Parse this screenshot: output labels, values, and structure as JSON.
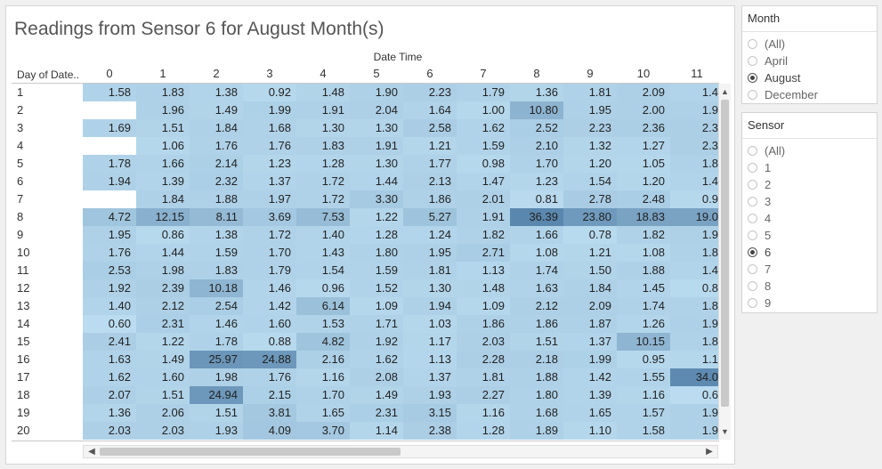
{
  "title": "Readings from Sensor 6 for August Month(s)",
  "column_axis_title": "Date Time",
  "row_axis_title": "Day of Date..",
  "columns": [
    "0",
    "1",
    "2",
    "3",
    "4",
    "5",
    "6",
    "7",
    "8",
    "9",
    "10",
    "11"
  ],
  "rows": [
    {
      "day": "1",
      "values": [
        "1.58",
        "1.83",
        "1.38",
        "0.92",
        "1.48",
        "1.90",
        "2.23",
        "1.79",
        "1.36",
        "1.81",
        "2.09",
        "1.4"
      ]
    },
    {
      "day": "2",
      "values": [
        "",
        "1.96",
        "1.49",
        "1.99",
        "1.91",
        "2.04",
        "1.64",
        "1.00",
        "10.80",
        "1.95",
        "2.00",
        "1.9"
      ]
    },
    {
      "day": "3",
      "values": [
        "1.69",
        "1.51",
        "1.84",
        "1.68",
        "1.30",
        "1.30",
        "2.58",
        "1.62",
        "2.52",
        "2.23",
        "2.36",
        "2.3"
      ]
    },
    {
      "day": "4",
      "values": [
        "",
        "1.06",
        "1.76",
        "1.76",
        "1.83",
        "1.91",
        "1.21",
        "1.59",
        "2.10",
        "1.32",
        "1.27",
        "2.3"
      ]
    },
    {
      "day": "5",
      "values": [
        "1.78",
        "1.66",
        "2.14",
        "1.23",
        "1.28",
        "1.30",
        "1.77",
        "0.98",
        "1.70",
        "1.20",
        "1.05",
        "1.8"
      ]
    },
    {
      "day": "6",
      "values": [
        "1.94",
        "1.39",
        "2.32",
        "1.37",
        "1.72",
        "1.44",
        "2.13",
        "1.47",
        "1.23",
        "1.54",
        "1.20",
        "1.4"
      ]
    },
    {
      "day": "7",
      "values": [
        "",
        "1.84",
        "1.88",
        "1.97",
        "1.72",
        "3.30",
        "1.86",
        "2.01",
        "0.81",
        "2.78",
        "2.48",
        "0.9"
      ]
    },
    {
      "day": "8",
      "values": [
        "4.72",
        "12.15",
        "8.11",
        "3.69",
        "7.53",
        "1.22",
        "5.27",
        "1.91",
        "36.39",
        "23.80",
        "18.83",
        "19.0"
      ]
    },
    {
      "day": "9",
      "values": [
        "1.95",
        "0.86",
        "1.38",
        "1.72",
        "1.40",
        "1.28",
        "1.24",
        "1.82",
        "1.66",
        "0.78",
        "1.82",
        "1.9"
      ]
    },
    {
      "day": "10",
      "values": [
        "1.76",
        "1.44",
        "1.59",
        "1.70",
        "1.43",
        "1.80",
        "1.95",
        "2.71",
        "1.08",
        "1.21",
        "1.08",
        "1.8"
      ]
    },
    {
      "day": "11",
      "values": [
        "2.53",
        "1.98",
        "1.83",
        "1.79",
        "1.54",
        "1.59",
        "1.81",
        "1.13",
        "1.74",
        "1.50",
        "1.88",
        "1.4"
      ]
    },
    {
      "day": "12",
      "values": [
        "1.92",
        "2.39",
        "10.18",
        "1.46",
        "0.96",
        "1.52",
        "1.30",
        "1.48",
        "1.63",
        "1.84",
        "1.45",
        "0.8"
      ]
    },
    {
      "day": "13",
      "values": [
        "1.40",
        "2.12",
        "2.54",
        "1.42",
        "6.14",
        "1.09",
        "1.94",
        "1.09",
        "2.12",
        "2.09",
        "1.74",
        "1.8"
      ]
    },
    {
      "day": "14",
      "values": [
        "0.60",
        "2.31",
        "1.46",
        "1.60",
        "1.53",
        "1.71",
        "1.03",
        "1.86",
        "1.86",
        "1.87",
        "1.26",
        "1.9"
      ]
    },
    {
      "day": "15",
      "values": [
        "2.41",
        "1.22",
        "1.78",
        "0.88",
        "4.82",
        "1.92",
        "1.17",
        "2.03",
        "1.51",
        "1.37",
        "10.15",
        "1.8"
      ]
    },
    {
      "day": "16",
      "values": [
        "1.63",
        "1.49",
        "25.97",
        "24.88",
        "2.16",
        "1.62",
        "1.13",
        "2.28",
        "2.18",
        "1.99",
        "0.95",
        "1.1"
      ]
    },
    {
      "day": "17",
      "values": [
        "1.62",
        "1.60",
        "1.98",
        "1.76",
        "1.16",
        "2.08",
        "1.37",
        "1.81",
        "1.88",
        "1.42",
        "1.55",
        "34.0"
      ]
    },
    {
      "day": "18",
      "values": [
        "2.07",
        "1.51",
        "24.94",
        "2.15",
        "1.70",
        "1.49",
        "1.93",
        "2.27",
        "1.80",
        "1.39",
        "1.16",
        "0.6"
      ]
    },
    {
      "day": "19",
      "values": [
        "1.36",
        "2.06",
        "1.51",
        "3.81",
        "1.65",
        "2.31",
        "3.15",
        "1.16",
        "1.68",
        "1.65",
        "1.57",
        "1.9"
      ]
    },
    {
      "day": "20",
      "values": [
        "2.03",
        "2.03",
        "1.93",
        "4.09",
        "3.70",
        "1.14",
        "2.38",
        "1.28",
        "1.89",
        "1.10",
        "1.58",
        "1.9"
      ]
    }
  ],
  "colors": {
    "low": "#bfe0f3",
    "high": "#5a87ae"
  },
  "month_filter": {
    "title": "Month",
    "options": [
      "(All)",
      "April",
      "August",
      "December"
    ],
    "selected": "August"
  },
  "sensor_filter": {
    "title": "Sensor",
    "options": [
      "(All)",
      "1",
      "2",
      "3",
      "4",
      "5",
      "6",
      "7",
      "8",
      "9"
    ],
    "selected": "6"
  },
  "icons": {
    "scroll_up": "chevron-up-icon",
    "scroll_down": "chevron-down-icon",
    "scroll_left": "chevron-left-icon",
    "scroll_right": "chevron-right-icon"
  }
}
